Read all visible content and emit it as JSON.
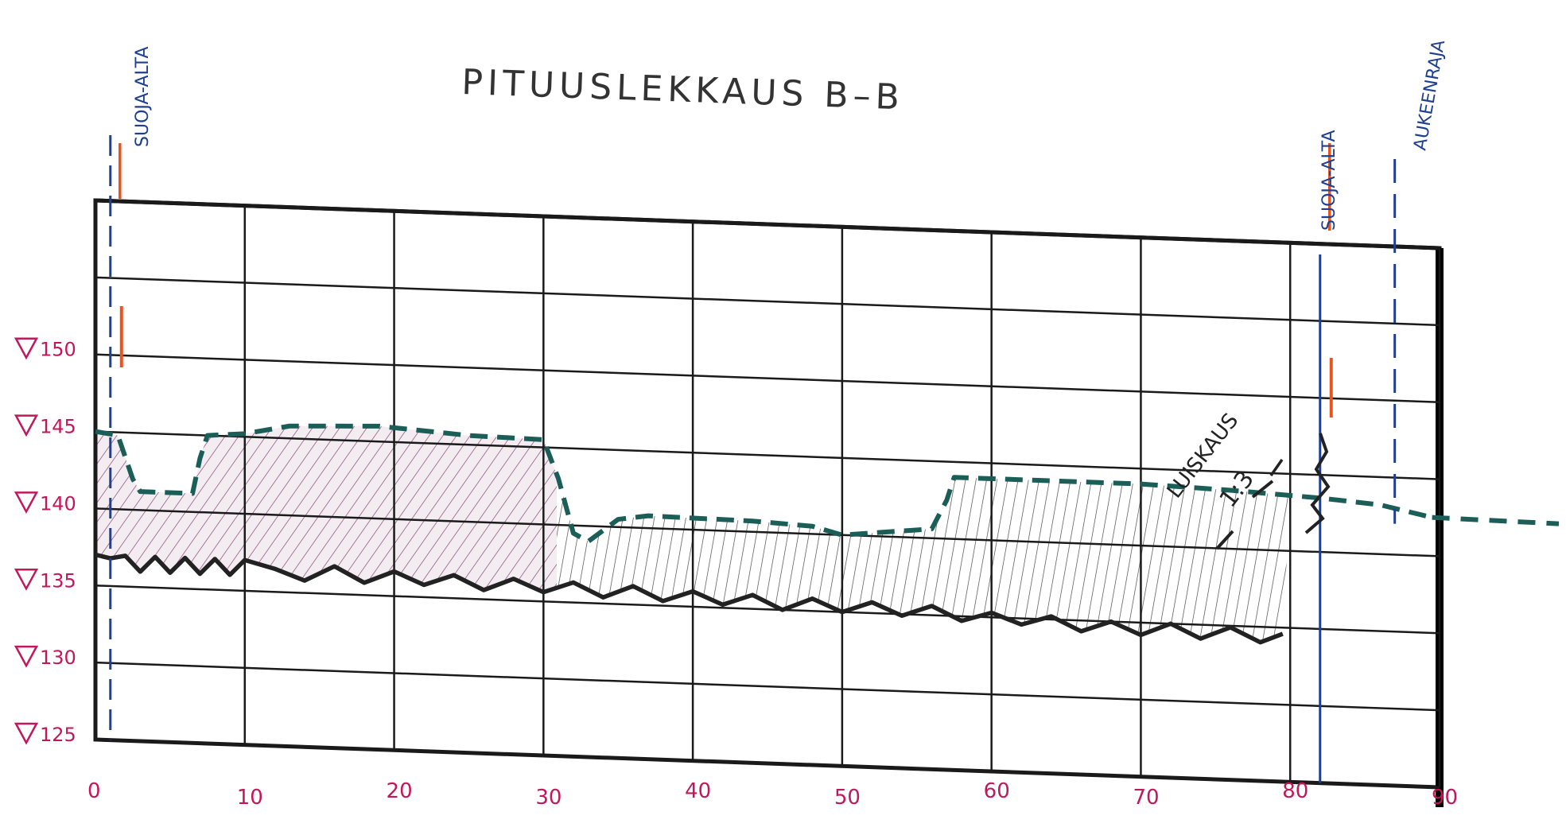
{
  "title": "PITUUSLEKKAUS B–B",
  "annotations": {
    "left_guard": "SUOJA-ALTA",
    "right_guard": "SUOJA-ALTA",
    "open_limit": "AUKEENRAJA",
    "slope_label": "LUISKAUS",
    "slope_ratio": "1:3"
  },
  "colors": {
    "grid": "#1a1a1a",
    "label_magenta": "#c2185b",
    "annot_blue": "#1f3f8f",
    "surface_teal": "#1b5e57",
    "hatch_purple": "#8a4a7a",
    "hatch_dark": "#4a4a4a",
    "bottom_black": "#222222",
    "orange": "#e8541e"
  },
  "chart_data": {
    "type": "line",
    "title": "PITUUSLEKKAUS B–B",
    "xlabel": "",
    "ylabel": "",
    "x_ticks": [
      "0",
      "10",
      "20",
      "30",
      "40",
      "50",
      "60",
      "70",
      "80",
      "90"
    ],
    "y_ticks": [
      "150",
      "145",
      "140",
      "135",
      "130",
      "125"
    ],
    "xlim": [
      0,
      90
    ],
    "ylim": [
      125,
      155
    ],
    "grid": true,
    "series": [
      {
        "style": "dashed-teal",
        "points": [
          [
            0,
            145
          ],
          [
            1.5,
            144.8
          ],
          [
            2.5,
            142
          ],
          [
            3,
            141.2
          ],
          [
            6.5,
            141.2
          ],
          [
            7,
            143.5
          ],
          [
            7.5,
            145
          ],
          [
            10,
            145.2
          ],
          [
            13,
            145.8
          ],
          [
            19,
            146
          ],
          [
            25,
            145.6
          ],
          [
            30,
            145.5
          ],
          [
            31,
            143
          ],
          [
            32,
            139.5
          ],
          [
            33,
            139
          ],
          [
            35,
            140.5
          ],
          [
            37,
            140.8
          ],
          [
            44,
            140.7
          ],
          [
            48,
            140.5
          ],
          [
            50,
            140
          ],
          [
            52,
            140.2
          ],
          [
            56,
            140.6
          ],
          [
            57,
            142.5
          ],
          [
            57.5,
            144
          ],
          [
            64,
            144
          ],
          [
            70,
            144
          ],
          [
            76,
            143.8
          ],
          [
            80,
            143.6
          ],
          [
            82,
            143.5
          ],
          [
            86,
            143.2
          ],
          [
            88,
            142.8
          ],
          [
            89.5,
            142.5
          ]
        ]
      },
      {
        "style": "zigzag-black",
        "points": [
          [
            0,
            137
          ],
          [
            1,
            136.8
          ],
          [
            2,
            137
          ],
          [
            3,
            136
          ],
          [
            4,
            137
          ],
          [
            5,
            136
          ],
          [
            6,
            137
          ],
          [
            7,
            136
          ],
          [
            8,
            137
          ],
          [
            9,
            136
          ],
          [
            10,
            137
          ],
          [
            12,
            136.5
          ],
          [
            14,
            135.8
          ],
          [
            16,
            136.8
          ],
          [
            18,
            135.8
          ],
          [
            20,
            136.6
          ],
          [
            22,
            135.8
          ],
          [
            24,
            136.5
          ],
          [
            26,
            135.6
          ],
          [
            28,
            136.4
          ],
          [
            30,
            135.6
          ],
          [
            32,
            136.3
          ],
          [
            34,
            135.4
          ],
          [
            36,
            136.2
          ],
          [
            38,
            135.3
          ],
          [
            40,
            136
          ],
          [
            42,
            135.2
          ],
          [
            44,
            135.9
          ],
          [
            46,
            135
          ],
          [
            48,
            135.8
          ],
          [
            50,
            135
          ],
          [
            52,
            135.7
          ],
          [
            54,
            134.9
          ],
          [
            56,
            135.6
          ],
          [
            58,
            134.7
          ],
          [
            60,
            135.3
          ],
          [
            62,
            134.6
          ],
          [
            64,
            135.2
          ],
          [
            66,
            134.3
          ],
          [
            68,
            135
          ],
          [
            70,
            134.2
          ],
          [
            72,
            135
          ],
          [
            74,
            134.1
          ],
          [
            76,
            134.9
          ],
          [
            78,
            134
          ],
          [
            79.5,
            134.6
          ]
        ]
      }
    ],
    "markers": [
      {
        "kind": "guard-line",
        "x": 1
      },
      {
        "kind": "guard-line",
        "x": 82
      },
      {
        "kind": "open-limit-line",
        "x": 87
      }
    ],
    "slope": {
      "label": "LUISKAUS",
      "ratio": "1:3"
    }
  }
}
